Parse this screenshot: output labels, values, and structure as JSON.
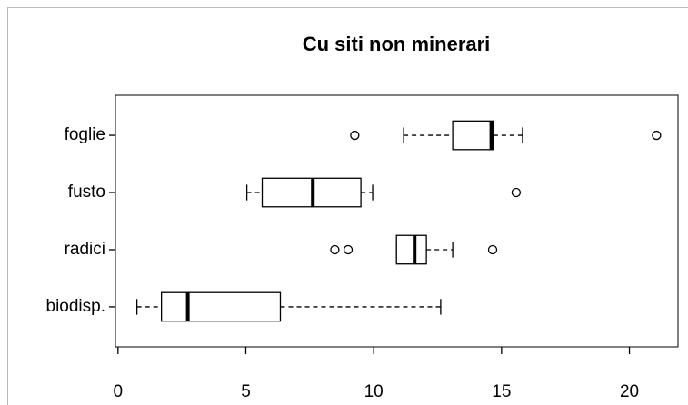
{
  "chart_data": {
    "type": "boxplot",
    "title": "Cu siti non minerari",
    "categories": [
      "biodisp.",
      "radici",
      "fusto",
      "foglie"
    ],
    "boxes": [
      {
        "low": 0.74,
        "q1": 1.7,
        "median": 2.73,
        "q3": 6.35,
        "high": 12.62,
        "outliers": []
      },
      {
        "low": 10.89,
        "q1": 10.89,
        "median": 11.6,
        "q3": 12.06,
        "high": 13.09,
        "outliers": [
          8.48,
          9.0,
          14.65
        ]
      },
      {
        "low": 5.04,
        "q1": 5.64,
        "median": 7.62,
        "q3": 9.5,
        "high": 9.96,
        "outliers": [
          15.57
        ]
      },
      {
        "low": 11.17,
        "q1": 13.09,
        "median": 14.6,
        "q3": 14.68,
        "high": 15.82,
        "outliers": [
          9.26,
          21.06
        ]
      }
    ],
    "xlim": [
      -0.1,
      21.9
    ],
    "xticks": [
      0,
      5,
      10,
      15,
      20
    ]
  }
}
